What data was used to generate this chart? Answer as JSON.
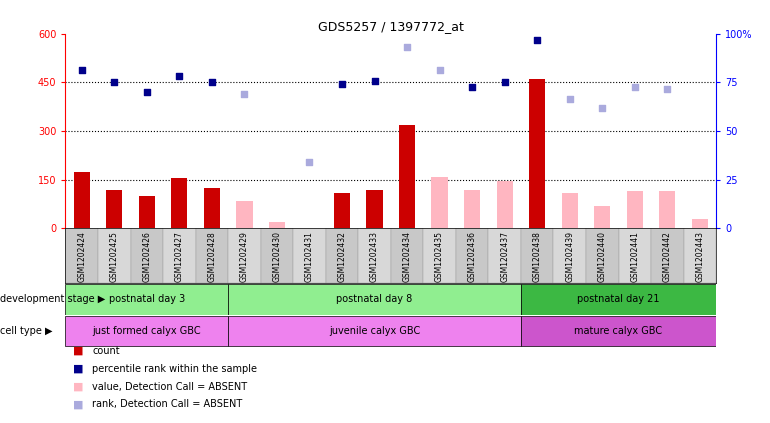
{
  "title": "GDS5257 / 1397772_at",
  "samples": [
    "GSM1202424",
    "GSM1202425",
    "GSM1202426",
    "GSM1202427",
    "GSM1202428",
    "GSM1202429",
    "GSM1202430",
    "GSM1202431",
    "GSM1202432",
    "GSM1202433",
    "GSM1202434",
    "GSM1202435",
    "GSM1202436",
    "GSM1202437",
    "GSM1202438",
    "GSM1202439",
    "GSM1202440",
    "GSM1202441",
    "GSM1202442",
    "GSM1202443"
  ],
  "count_present": [
    175,
    120,
    100,
    155,
    125,
    null,
    null,
    null,
    110,
    120,
    320,
    null,
    null,
    null,
    460,
    null,
    null,
    null,
    null,
    null
  ],
  "count_absent": [
    null,
    null,
    null,
    null,
    null,
    85,
    20,
    null,
    null,
    null,
    null,
    160,
    120,
    145,
    null,
    110,
    70,
    115,
    115,
    30
  ],
  "rank_present": [
    490,
    450,
    420,
    470,
    450,
    null,
    null,
    null,
    445,
    455,
    null,
    null,
    435,
    450,
    580,
    null,
    null,
    null,
    null,
    null
  ],
  "rank_absent": [
    null,
    null,
    null,
    null,
    null,
    415,
    null,
    205,
    null,
    null,
    560,
    490,
    null,
    null,
    null,
    400,
    370,
    435,
    430,
    null
  ],
  "dev_groups": [
    {
      "label": "postnatal day 3",
      "start": 0,
      "end": 5,
      "color": "#90EE90"
    },
    {
      "label": "postnatal day 8",
      "start": 5,
      "end": 14,
      "color": "#90EE90"
    },
    {
      "label": "postnatal day 21",
      "start": 14,
      "end": 20,
      "color": "#3CB843"
    }
  ],
  "cell_groups": [
    {
      "label": "just formed calyx GBC",
      "start": 0,
      "end": 5,
      "color": "#EE82EE"
    },
    {
      "label": "juvenile calyx GBC",
      "start": 5,
      "end": 14,
      "color": "#EE82EE"
    },
    {
      "label": "mature calyx GBC",
      "start": 14,
      "end": 20,
      "color": "#CC55CC"
    }
  ],
  "ylim_left": [
    0,
    600
  ],
  "ylim_right": [
    0,
    100
  ],
  "yticks_left": [
    0,
    150,
    300,
    450,
    600
  ],
  "yticks_right": [
    0,
    25,
    50,
    75,
    100
  ],
  "bar_color_present": "#CC0000",
  "bar_color_absent": "#FFB6C1",
  "rank_color_present": "#00008B",
  "rank_color_absent": "#AAAADD",
  "legend_items": [
    {
      "color": "#CC0000",
      "label": "count"
    },
    {
      "color": "#00008B",
      "label": "percentile rank within the sample"
    },
    {
      "color": "#FFB6C1",
      "label": "value, Detection Call = ABSENT"
    },
    {
      "color": "#AAAADD",
      "label": "rank, Detection Call = ABSENT"
    }
  ]
}
